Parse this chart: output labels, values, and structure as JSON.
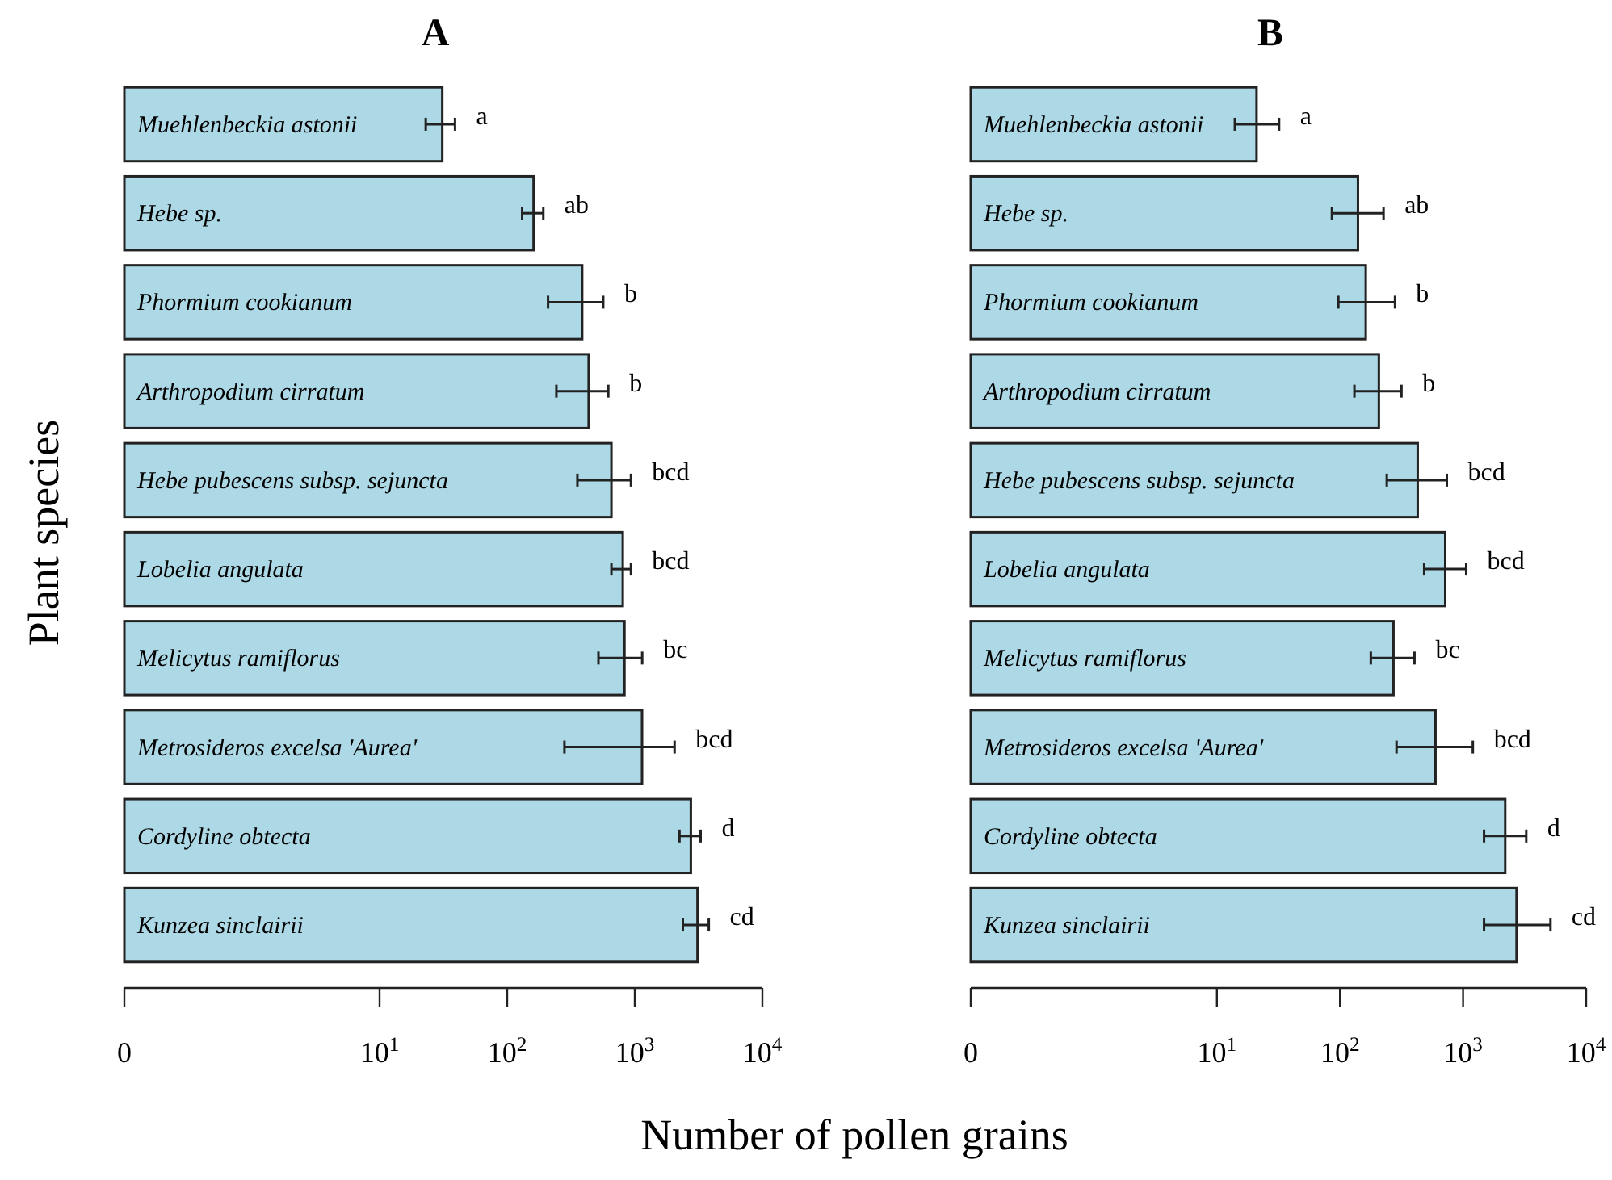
{
  "chart_data": [
    {
      "type": "bar",
      "orientation": "horizontal",
      "title": "A",
      "xlabel": "Number of pollen grains",
      "ylabel": "Plant species",
      "log": "x",
      "xlim": [
        0.1,
        10000
      ],
      "xticks": [
        {
          "value": 0.1,
          "label": "0"
        },
        {
          "value": 10,
          "label": "10$^{1}$"
        },
        {
          "value": 100,
          "label": "10$^{2}$"
        },
        {
          "value": 1000,
          "label": "10$^{3}$"
        },
        {
          "value": 10000,
          "label": "10$^{4}$"
        }
      ],
      "categories": [
        "Muehlenbeckia astonii",
        "Hebe sp.",
        "Phormium cookianum",
        "Arthropodium cirratum",
        "Hebe pubescens subsp. sejuncta",
        "Lobelia angulata",
        "Melicytus ramiflorus",
        "Metrosideros excelsa 'Aurea'",
        "Cordyline obtecta",
        "Kunzea sinclairii"
      ],
      "series": [
        {
          "color": "#add8e6",
          "values": [
            31,
            161,
            387,
            435,
            656,
            805,
            830,
            1140,
            2750,
            3100
          ],
          "errors": [
            [
              23,
              39
            ],
            [
              131,
              192
            ],
            [
              209,
              566
            ],
            [
              243,
              620
            ],
            [
              355,
              933
            ],
            [
              656,
              933
            ],
            [
              519,
              1143
            ],
            [
              281,
              2050
            ],
            [
              2240,
              3280
            ],
            [
              2380,
              3800
            ]
          ]
        }
      ],
      "annotations": [
        {
          "text": "a",
          "x": 39,
          "y": "Muehlenbeckia astonii"
        },
        {
          "text": "ab",
          "x": 192,
          "y": "Hebe sp."
        },
        {
          "text": "b",
          "x": 566,
          "y": "Phormium cookianum"
        },
        {
          "text": "b",
          "x": 620,
          "y": "Arthropodium cirratum"
        },
        {
          "text": "bcd",
          "x": 933,
          "y": "Hebe pubescens subsp. sejuncta"
        },
        {
          "text": "bcd",
          "x": 933,
          "y": "Lobelia angulata"
        },
        {
          "text": "bc",
          "x": 1143,
          "y": "Melicytus ramiflorus"
        },
        {
          "text": "bcd",
          "x": 2050,
          "y": "Metrosideros excelsa 'Aurea'"
        },
        {
          "text": "d",
          "x": 3280,
          "y": "Cordyline obtecta"
        },
        {
          "text": "cd",
          "x": 3800,
          "y": "Kunzea sinclairii"
        }
      ]
    },
    {
      "type": "bar",
      "orientation": "horizontal",
      "title": "B",
      "log": "x",
      "xlim": [
        0.1,
        10000
      ],
      "xticks": [
        {
          "value": 0.1,
          "label": "0"
        },
        {
          "value": 10,
          "label": "10$^{1}$"
        },
        {
          "value": 100,
          "label": "10$^{2}$"
        },
        {
          "value": 1000,
          "label": "10$^{3}$"
        },
        {
          "value": 10000,
          "label": "10$^{4}$"
        }
      ],
      "categories": [
        "Muehlenbeckia astonii",
        "Hebe sp.",
        "Phormium cookianum",
        "Arthropodium cirratum",
        "Hebe pubescens subsp. sejuncta",
        "Lobelia angulata",
        "Melicytus ramiflorus",
        "Metrosideros excelsa 'Aurea'",
        "Cordyline obtecta",
        "Kunzea sinclairii"
      ],
      "series": [
        {
          "color": "#add8e6",
          "values": [
            21,
            140,
            162,
            207,
            428,
            716,
            272,
            597,
            2200,
            2720
          ],
          "errors": [
            [
              14,
              32
            ],
            [
              86,
              226
            ],
            [
              97,
              280
            ],
            [
              131,
              316
            ],
            [
              240,
              738
            ],
            [
              483,
              1060
            ],
            [
              178,
              403
            ],
            [
              288,
              1200
            ],
            [
              1480,
              3260
            ],
            [
              1480,
              5130
            ]
          ]
        }
      ],
      "annotations": [
        {
          "text": "a",
          "x": 32,
          "y": "Muehlenbeckia astonii"
        },
        {
          "text": "ab",
          "x": 226,
          "y": "Hebe sp."
        },
        {
          "text": "b",
          "x": 280,
          "y": "Phormium cookianum"
        },
        {
          "text": "b",
          "x": 316,
          "y": "Arthropodium cirratum"
        },
        {
          "text": "bcd",
          "x": 738,
          "y": "Hebe pubescens subsp. sejuncta"
        },
        {
          "text": "bcd",
          "x": 1060,
          "y": "Lobelia angulata"
        },
        {
          "text": "bc",
          "x": 403,
          "y": "Melicytus ramiflorus"
        },
        {
          "text": "bcd",
          "x": 1200,
          "y": "Metrosideros excelsa 'Aurea'"
        },
        {
          "text": "d",
          "x": 3260,
          "y": "Cordyline obtecta"
        },
        {
          "text": "cd",
          "x": 5130,
          "y": "Kunzea sinclairii"
        }
      ]
    }
  ]
}
